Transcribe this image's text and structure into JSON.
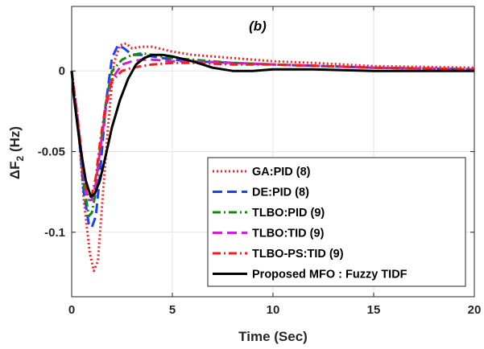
{
  "chart_data": {
    "type": "line",
    "annotation": "(b)",
    "xlabel": "Time (Sec)",
    "ylabel": "ΔF",
    "ylabel_sub": "2",
    "ylabel_unit": " (Hz)",
    "xlim": [
      0,
      20
    ],
    "ylim": [
      -0.14,
      0.04
    ],
    "xticks": [
      0,
      5,
      10,
      15,
      20
    ],
    "xtick_labels": [
      "0",
      "5",
      "10",
      "15",
      "20"
    ],
    "yticks": [
      0,
      -0.05,
      -0.1
    ],
    "ytick_labels": [
      "0",
      "-0.05",
      "-0.1"
    ],
    "grid": true,
    "legend_position": "bottom-right",
    "series": [
      {
        "name": "GA:PID (8)",
        "color": "#ff2020",
        "style": "dotted",
        "x": [
          0,
          0.3,
          0.6,
          0.9,
          1.1,
          1.3,
          1.5,
          1.8,
          2.1,
          2.4,
          2.7,
          3.0,
          3.5,
          4.0,
          5.0,
          6.0,
          8.0,
          10.0,
          12.0,
          15.0,
          20.0
        ],
        "y": [
          0,
          -0.03,
          -0.08,
          -0.113,
          -0.124,
          -0.118,
          -0.085,
          -0.035,
          0.005,
          0.016,
          0.017,
          0.014,
          0.015,
          0.015,
          0.012,
          0.01,
          0.008,
          0.006,
          0.005,
          0.003,
          0.002
        ]
      },
      {
        "name": "DE:PID (8)",
        "color": "#1f3fff",
        "style": "dashed",
        "x": [
          0,
          0.3,
          0.6,
          0.85,
          1.0,
          1.2,
          1.4,
          1.7,
          2.0,
          2.3,
          2.6,
          3.0,
          3.5,
          4.0,
          5.0,
          6.0,
          8.0,
          10.0,
          15.0,
          20.0
        ],
        "y": [
          0,
          -0.03,
          -0.075,
          -0.095,
          -0.097,
          -0.09,
          -0.065,
          -0.02,
          0.008,
          0.016,
          0.014,
          0.01,
          0.01,
          0.009,
          0.007,
          0.006,
          0.005,
          0.004,
          0.002,
          0.001
        ]
      },
      {
        "name": "TLBO:PID (9)",
        "color": "#108a10",
        "style": "dashdot",
        "x": [
          0,
          0.3,
          0.6,
          0.85,
          1.0,
          1.2,
          1.4,
          1.7,
          2.0,
          2.5,
          3.0,
          3.5,
          4.0,
          5.0,
          6.0,
          8.0,
          10.0,
          15.0,
          20.0
        ],
        "y": [
          0,
          -0.03,
          -0.07,
          -0.09,
          -0.088,
          -0.075,
          -0.05,
          -0.02,
          0.0,
          0.007,
          0.01,
          0.011,
          0.01,
          0.008,
          0.007,
          0.005,
          0.004,
          0.002,
          0.001
        ]
      },
      {
        "name": "TLBO:TID (9)",
        "color": "#cc22cc",
        "style": "dashed",
        "x": [
          0,
          0.3,
          0.6,
          0.8,
          1.0,
          1.2,
          1.4,
          1.7,
          2.0,
          2.5,
          3.0,
          3.5,
          4.0,
          5.0,
          6.0,
          8.0,
          10.0,
          15.0,
          20.0
        ],
        "y": [
          0,
          -0.03,
          -0.065,
          -0.08,
          -0.08,
          -0.07,
          -0.05,
          -0.023,
          -0.005,
          0.004,
          0.006,
          0.007,
          0.007,
          0.006,
          0.006,
          0.005,
          0.004,
          0.002,
          0.001
        ]
      },
      {
        "name": "TLBO-PS:TID (9)",
        "color": "#ff1a1a",
        "style": "dashdot",
        "x": [
          0,
          0.3,
          0.6,
          0.8,
          1.0,
          1.2,
          1.4,
          1.7,
          2.0,
          2.5,
          3.0,
          3.5,
          4.0,
          5.0,
          6.0,
          8.0,
          10.0,
          15.0,
          20.0
        ],
        "y": [
          0,
          -0.03,
          -0.063,
          -0.078,
          -0.077,
          -0.066,
          -0.045,
          -0.02,
          -0.006,
          0.0,
          0.002,
          0.003,
          0.004,
          0.005,
          0.005,
          0.004,
          0.004,
          0.002,
          0.001
        ]
      },
      {
        "name": "Proposed MFO : Fuzzy TIDF",
        "color": "#000000",
        "style": "solid",
        "x": [
          0,
          0.1,
          0.4,
          0.7,
          0.95,
          1.15,
          1.4,
          1.7,
          2.0,
          2.4,
          2.8,
          3.2,
          3.6,
          4.0,
          4.5,
          5.0,
          6.0,
          7.0,
          8.0,
          9.0,
          10.0,
          12.0,
          15.0,
          20.0
        ],
        "y": [
          0,
          -0.015,
          -0.045,
          -0.068,
          -0.078,
          -0.076,
          -0.068,
          -0.052,
          -0.035,
          -0.018,
          -0.005,
          0.004,
          0.008,
          0.01,
          0.01,
          0.009,
          0.006,
          0.002,
          0.0,
          0.0,
          0.001,
          0.001,
          0.0,
          0.0
        ]
      }
    ]
  }
}
